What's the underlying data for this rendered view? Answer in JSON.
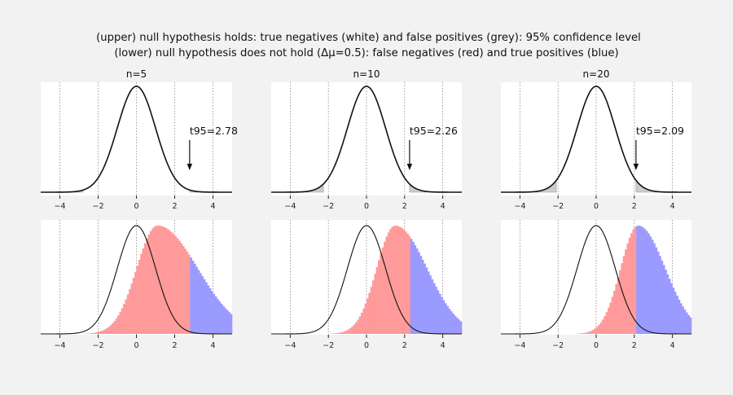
{
  "title_line1": "(upper) null hypothesis holds: true negatives (white) and false positives (grey): 95% confidence level",
  "title_line2": "(lower) null hypothesis does not hold (Δμ=0.5): false negatives (red) and true positives (blue)",
  "colors": {
    "false_positive": "#cccccc",
    "false_negative": "#ff9a9a",
    "true_positive": "#9a9aff",
    "curve": "#111111",
    "grid": "#888888",
    "panel_bg": "#ffffff"
  },
  "chart_data": [
    {
      "type": "area",
      "row": "upper",
      "n_label": "n=5",
      "n": 5,
      "t95": 2.78,
      "t95_label": "t95=2.78",
      "xlim": [
        -5,
        5
      ],
      "xticks": [
        -4,
        -2,
        0,
        2,
        4
      ],
      "xticklabels": [
        "−4",
        "−2",
        "0",
        "2",
        "4"
      ],
      "grid": "vertical dotted",
      "shaded": "tails |t| > t95 (grey)"
    },
    {
      "type": "area",
      "row": "upper",
      "n_label": "n=10",
      "n": 10,
      "t95": 2.26,
      "t95_label": "t95=2.26",
      "xlim": [
        -5,
        5
      ],
      "xticks": [
        -4,
        -2,
        0,
        2,
        4
      ],
      "xticklabels": [
        "−4",
        "−2",
        "0",
        "2",
        "4"
      ],
      "grid": "vertical dotted",
      "shaded": "tails |t| > t95 (grey)"
    },
    {
      "type": "area",
      "row": "upper",
      "n_label": "n=20",
      "n": 20,
      "t95": 2.09,
      "t95_label": "t95=2.09",
      "xlim": [
        -5,
        5
      ],
      "xticks": [
        -4,
        -2,
        0,
        2,
        4
      ],
      "xticklabels": [
        "−4",
        "−2",
        "0",
        "2",
        "4"
      ],
      "grid": "vertical dotted",
      "shaded": "tails |t| > t95 (grey)"
    },
    {
      "type": "bar",
      "row": "lower",
      "n": 5,
      "t95": 2.78,
      "delta_mu": 0.5,
      "xlim": [
        -5,
        5
      ],
      "xticks": [
        -4,
        -2,
        0,
        2,
        4
      ],
      "xticklabels": [
        "−4",
        "−2",
        "0",
        "2",
        "4"
      ],
      "histogram_peak_t": 1.1,
      "histogram_spread": 1.35,
      "histogram_skew": 0.55,
      "below_t95": "false negatives (red)",
      "above_t95": "true positives (blue)"
    },
    {
      "type": "bar",
      "row": "lower",
      "n": 10,
      "t95": 2.26,
      "delta_mu": 0.5,
      "xlim": [
        -5,
        5
      ],
      "xticks": [
        -4,
        -2,
        0,
        2,
        4
      ],
      "xticklabels": [
        "−4",
        "−2",
        "0",
        "2",
        "4"
      ],
      "histogram_peak_t": 1.5,
      "histogram_spread": 1.15,
      "histogram_skew": 0.45,
      "below_t95": "false negatives (red)",
      "above_t95": "true positives (blue)"
    },
    {
      "type": "bar",
      "row": "lower",
      "n": 20,
      "t95": 2.09,
      "delta_mu": 0.5,
      "xlim": [
        -5,
        5
      ],
      "xticks": [
        -4,
        -2,
        0,
        2,
        4
      ],
      "xticklabels": [
        "−4",
        "−2",
        "0",
        "2",
        "4"
      ],
      "histogram_peak_t": 2.2,
      "histogram_spread": 1.05,
      "histogram_skew": 0.35,
      "below_t95": "false negatives (red)",
      "above_t95": "true positives (blue)"
    }
  ]
}
